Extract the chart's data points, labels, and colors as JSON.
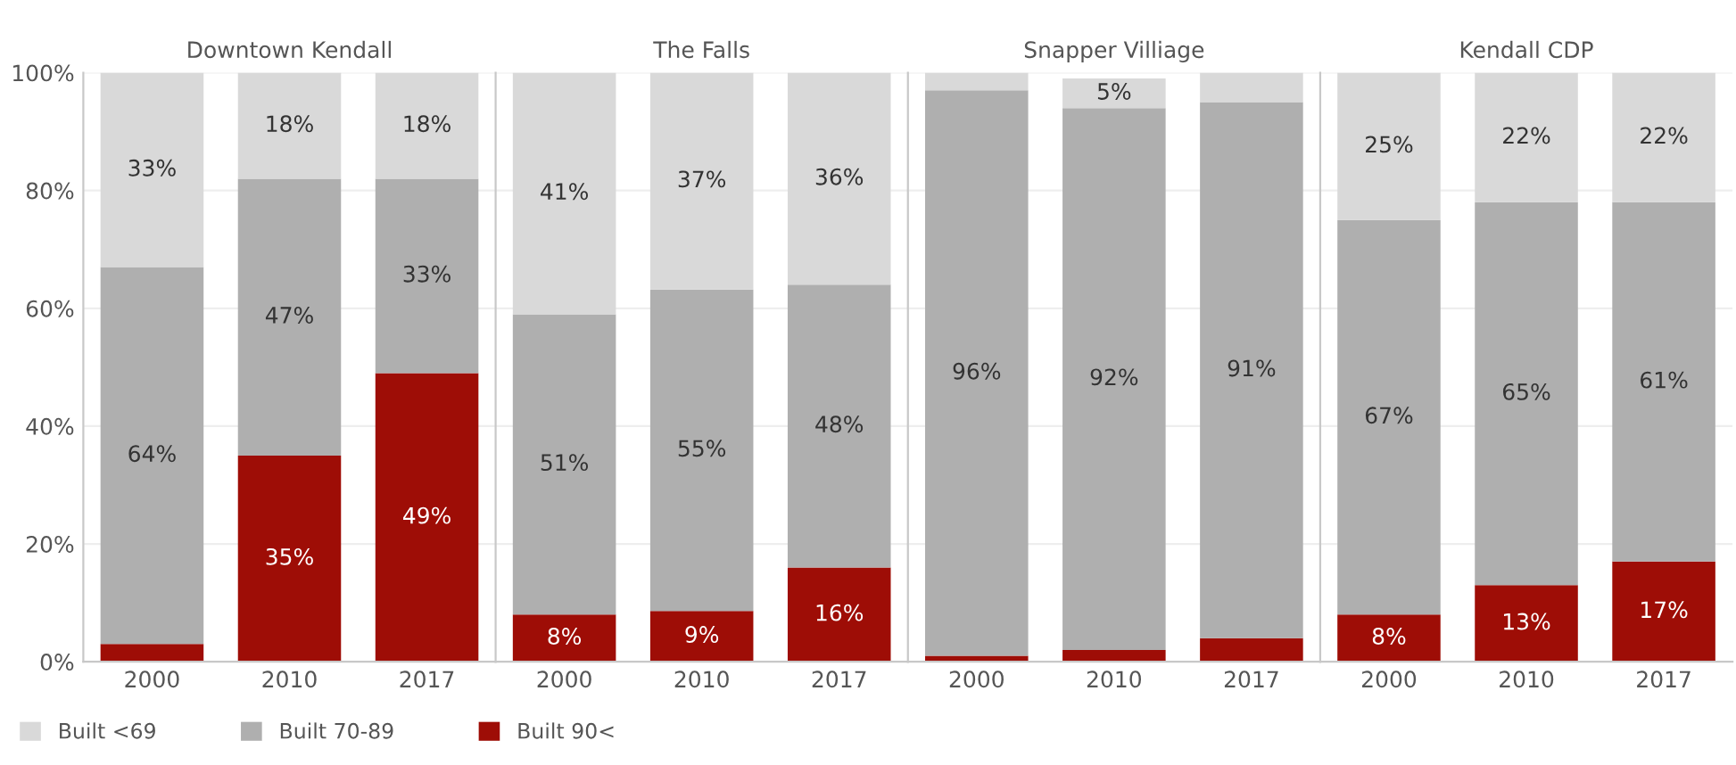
{
  "chart_data": [
    {
      "type": "bar",
      "title": "Downtown Kendall",
      "categories": [
        "2000",
        "2010",
        "2017"
      ],
      "stacked": true,
      "ylim": [
        0,
        100
      ],
      "yticks": [
        {
          "value": 0,
          "label": "0%"
        },
        {
          "value": 20,
          "label": "20%"
        },
        {
          "value": 40,
          "label": "40%"
        },
        {
          "value": 60,
          "label": "60%"
        },
        {
          "value": 80,
          "label": "80%"
        },
        {
          "value": 100,
          "label": "100%"
        }
      ],
      "grid": "y",
      "legend": "bottom",
      "series": [
        {
          "name": "Built 90<",
          "color": "#9e0d06",
          "values": [
            3,
            35,
            49
          ],
          "value_labels": [
            null,
            "35%",
            "49%"
          ]
        },
        {
          "name": "Built 70-89",
          "color": "#afafaf",
          "values": [
            64,
            47,
            33
          ],
          "value_labels": [
            "64%",
            "47%",
            "33%"
          ]
        },
        {
          "name": "Built <69",
          "color": "#d9d9d9",
          "values": [
            33,
            18,
            18
          ],
          "value_labels": [
            "33%",
            "18%",
            "18%"
          ]
        }
      ]
    },
    {
      "type": "bar",
      "title": "The Falls",
      "categories": [
        "2000",
        "2010",
        "2017"
      ],
      "stacked": true,
      "ylim": [
        0,
        100
      ],
      "grid": "y",
      "tick_labels": "x",
      "series": [
        {
          "color": "#9e0d06",
          "values": [
            8,
            8.6,
            16
          ],
          "value_labels": [
            "8%",
            "9%",
            "16%"
          ]
        },
        {
          "color": "#afafaf",
          "values": [
            51,
            54.6,
            48
          ],
          "value_labels": [
            "51%",
            "55%",
            "48%"
          ]
        },
        {
          "color": "#d9d9d9",
          "values": [
            41,
            36.8,
            36
          ],
          "value_labels": [
            "41%",
            "37%",
            "36%"
          ]
        }
      ]
    },
    {
      "type": "bar",
      "title": "Snapper Villiage",
      "categories": [
        "2000",
        "2010",
        "2017"
      ],
      "stacked": true,
      "ylim": [
        0,
        100
      ],
      "grid": "y",
      "tick_labels": "x",
      "series": [
        {
          "color": "#9e0d06",
          "values": [
            1,
            2,
            4
          ],
          "value_labels": [
            null,
            null,
            null
          ]
        },
        {
          "color": "#afafaf",
          "values": [
            96,
            92,
            91
          ],
          "value_labels": [
            "96%",
            "92%",
            "91%"
          ]
        },
        {
          "color": "#d9d9d9",
          "values": [
            3,
            5,
            5
          ],
          "value_labels": [
            null,
            "5%",
            null
          ]
        }
      ]
    },
    {
      "type": "bar",
      "title": "Kendall CDP",
      "categories": [
        "2000",
        "2010",
        "2017"
      ],
      "stacked": true,
      "ylim": [
        0,
        100
      ],
      "grid": "y",
      "tick_labels": "x",
      "series": [
        {
          "color": "#9e0d06",
          "values": [
            8,
            13,
            17
          ],
          "value_labels": [
            "8%",
            "13%",
            "17%"
          ]
        },
        {
          "color": "#afafaf",
          "values": [
            67,
            65,
            61
          ],
          "value_labels": [
            "67%",
            "65%",
            "61%"
          ]
        },
        {
          "color": "#d9d9d9",
          "values": [
            25,
            22,
            22
          ],
          "value_labels": [
            "25%",
            "22%",
            "22%"
          ]
        }
      ]
    }
  ]
}
